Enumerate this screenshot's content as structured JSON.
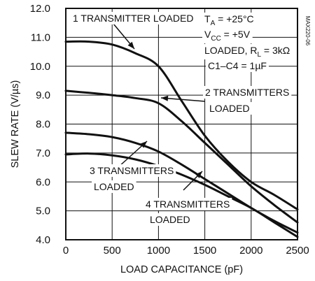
{
  "chart_data": {
    "type": "line",
    "title": "",
    "xlabel": "LOAD CAPACITANCE (pF)",
    "ylabel": "SLEW RATE (V/µs)",
    "xlim": [
      0,
      2500
    ],
    "ylim": [
      4.0,
      12.0
    ],
    "xticks": [
      0,
      500,
      1000,
      1500,
      2000,
      2500
    ],
    "xtick_labels": [
      "0",
      "500",
      "1000",
      "1500",
      "2000",
      "2500"
    ],
    "yticks": [
      4.0,
      5.0,
      6.0,
      7.0,
      8.0,
      9.0,
      10.0,
      11.0,
      12.0
    ],
    "ytick_labels": [
      "4.0",
      "5.0",
      "6.0",
      "7.0",
      "8.0",
      "9.0",
      "10.0",
      "11.0",
      "12.0"
    ],
    "grid": true,
    "legend": "none (inline labels)",
    "series": [
      {
        "name": "1 TRANSMITTER LOADED",
        "x": [
          0,
          250,
          500,
          750,
          1000,
          1250,
          1500,
          1750,
          2000,
          2250,
          2500
        ],
        "y": [
          10.85,
          10.85,
          10.75,
          10.45,
          10.0,
          8.8,
          7.6,
          6.7,
          6.0,
          5.55,
          5.05
        ]
      },
      {
        "name": "2 TRANSMITTERS LOADED",
        "x": [
          0,
          250,
          500,
          750,
          1000,
          1250,
          1500,
          1750,
          2000,
          2250,
          2500
        ],
        "y": [
          9.15,
          9.08,
          9.0,
          8.9,
          8.72,
          8.1,
          7.35,
          6.6,
          5.85,
          5.2,
          4.6
        ]
      },
      {
        "name": "3 TRANSMITTERS LOADED",
        "x": [
          0,
          250,
          500,
          750,
          1000,
          1250,
          1500,
          1750,
          2000,
          2250,
          2500
        ],
        "y": [
          7.7,
          7.65,
          7.55,
          7.35,
          7.05,
          6.6,
          6.1,
          5.6,
          5.1,
          4.65,
          4.25
        ]
      },
      {
        "name": "4 TRANSMITTERS LOADED",
        "x": [
          0,
          250,
          500,
          750,
          1000,
          1250,
          1500,
          1750,
          2000,
          2250,
          2500
        ],
        "y": [
          6.95,
          6.98,
          6.92,
          6.78,
          6.55,
          6.25,
          5.9,
          5.5,
          5.1,
          4.6,
          4.1
        ]
      }
    ],
    "annotations": {
      "label_1": "1 TRANSMITTER LOADED",
      "label_2_line1": "2 TRANSMITTERS",
      "label_2_line2": "LOADED",
      "label_3_line1": "3 TRANSMITTERS",
      "label_3_line2": "LOADED",
      "label_4_line1": "4 TRANSMITTERS",
      "label_4_line2": "LOADED"
    },
    "conditions": {
      "ta_main": "T",
      "ta_sub": "A",
      "ta_rest": " = +25°C",
      "vcc_main": "V",
      "vcc_sub": "CC",
      "vcc_rest": " = +5V",
      "loaded": "LOADED, R",
      "loaded_sub": "L",
      "loaded_rest": " = 3kΩ",
      "cap": "C1–C4 = 1µF"
    },
    "figure_code": "MAX220-06"
  }
}
